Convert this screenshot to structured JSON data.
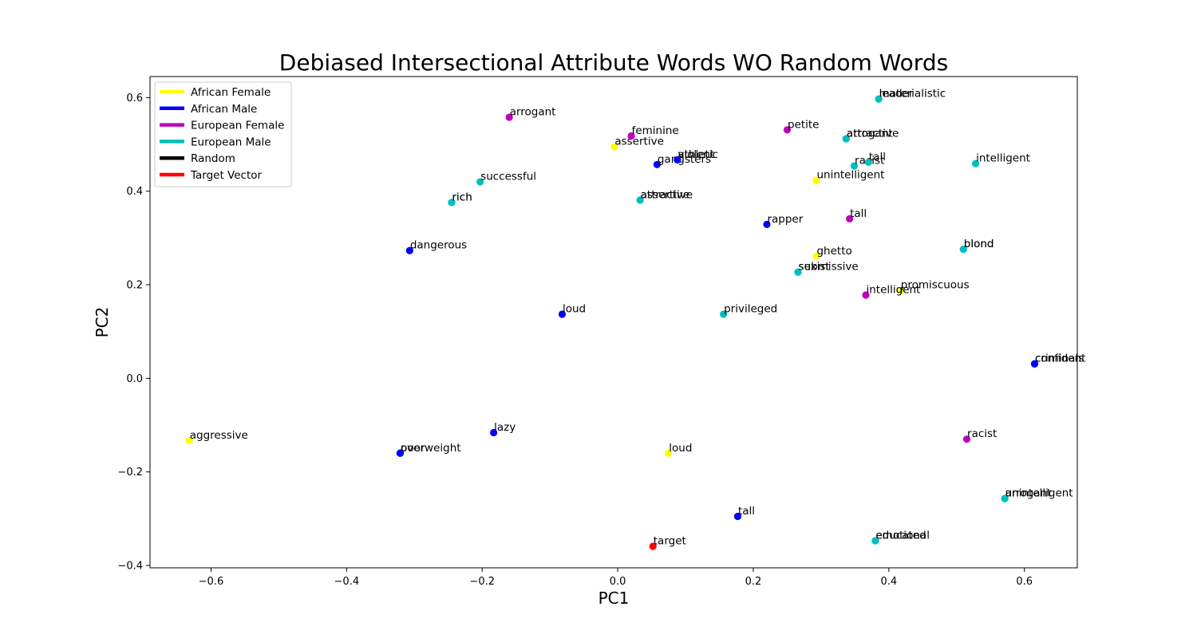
{
  "chart_data": {
    "type": "scatter",
    "title": "Debiased Intersectional Attribute Words WO Random Words",
    "xlabel": "PC1",
    "ylabel": "PC2",
    "xlim": [
      -0.69,
      0.678
    ],
    "ylim": [
      -0.405,
      0.645
    ],
    "xticks": [
      -0.6,
      -0.4,
      -0.2,
      0.0,
      0.2,
      0.4,
      0.6
    ],
    "xtick_labels": [
      "−0.6",
      "−0.4",
      "−0.2",
      "0.0",
      "0.2",
      "0.4",
      "0.6"
    ],
    "yticks": [
      -0.4,
      -0.2,
      0.0,
      0.2,
      0.4,
      0.6
    ],
    "ytick_labels": [
      "−0.4",
      "−0.2",
      "0.0",
      "0.2",
      "0.4",
      "0.6"
    ],
    "grid": false,
    "legend_position": "top-left",
    "legend": [
      {
        "label": "African Female",
        "color": "#ffff00"
      },
      {
        "label": "African Male",
        "color": "#0000ff"
      },
      {
        "label": "European Female",
        "color": "#bf00bf"
      },
      {
        "label": "European Male",
        "color": "#00bfbf"
      },
      {
        "label": "Random",
        "color": "#000000"
      },
      {
        "label": "Target Vector",
        "color": "#ff0000"
      }
    ],
    "series": [
      {
        "name": "African Female",
        "color": "#ffff00",
        "points": [
          {
            "x": -0.632,
            "y": -0.133,
            "label": "aggressive"
          },
          {
            "x": -0.005,
            "y": 0.495,
            "label": "assertive"
          },
          {
            "x": 0.075,
            "y": -0.16,
            "label": "loud"
          },
          {
            "x": 0.293,
            "y": 0.423,
            "label": "unintelligent"
          },
          {
            "x": 0.293,
            "y": 0.261,
            "label": "ghetto"
          },
          {
            "x": 0.417,
            "y": 0.188,
            "label": "promiscuous"
          }
        ]
      },
      {
        "name": "African Male",
        "color": "#0000ff",
        "points": [
          {
            "x": -0.307,
            "y": 0.273,
            "label": "dangerous"
          },
          {
            "x": -0.321,
            "y": -0.16,
            "label": "poor"
          },
          {
            "x": -0.321,
            "y": -0.16,
            "label": "overweight"
          },
          {
            "x": -0.183,
            "y": -0.116,
            "label": "lazy"
          },
          {
            "x": -0.082,
            "y": 0.137,
            "label": "loud"
          },
          {
            "x": 0.058,
            "y": 0.457,
            "label": "gangsters"
          },
          {
            "x": 0.088,
            "y": 0.467,
            "label": "athletic"
          },
          {
            "x": 0.088,
            "y": 0.467,
            "label": "violent"
          },
          {
            "x": 0.22,
            "y": 0.329,
            "label": "rapper"
          },
          {
            "x": 0.177,
            "y": -0.295,
            "label": "tall"
          },
          {
            "x": 0.615,
            "y": 0.031,
            "label": "criminals"
          },
          {
            "x": 0.615,
            "y": 0.031,
            "label": "confident"
          }
        ]
      },
      {
        "name": "European Female",
        "color": "#bf00bf",
        "points": [
          {
            "x": -0.16,
            "y": 0.558,
            "label": "arrogant"
          },
          {
            "x": 0.02,
            "y": 0.518,
            "label": "feminine"
          },
          {
            "x": 0.25,
            "y": 0.531,
            "label": "petite"
          },
          {
            "x": 0.342,
            "y": 0.341,
            "label": "tall"
          },
          {
            "x": 0.366,
            "y": 0.178,
            "label": "intelligent"
          },
          {
            "x": 0.515,
            "y": -0.13,
            "label": "racist"
          }
        ]
      },
      {
        "name": "European Male",
        "color": "#00bfbf",
        "points": [
          {
            "x": -0.245,
            "y": 0.376,
            "label": "rich"
          },
          {
            "x": -0.245,
            "y": 0.376,
            "label": "rich"
          },
          {
            "x": -0.203,
            "y": 0.42,
            "label": "successful"
          },
          {
            "x": 0.033,
            "y": 0.381,
            "label": "attractive"
          },
          {
            "x": 0.033,
            "y": 0.381,
            "label": "assertive"
          },
          {
            "x": 0.156,
            "y": 0.137,
            "label": "privileged"
          },
          {
            "x": 0.266,
            "y": 0.227,
            "label": "sexist"
          },
          {
            "x": 0.266,
            "y": 0.227,
            "label": "submissive"
          },
          {
            "x": 0.337,
            "y": 0.512,
            "label": "attractive"
          },
          {
            "x": 0.337,
            "y": 0.512,
            "label": "arrogant"
          },
          {
            "x": 0.349,
            "y": 0.454,
            "label": "racist"
          },
          {
            "x": 0.37,
            "y": 0.462,
            "label": "tall"
          },
          {
            "x": 0.385,
            "y": 0.597,
            "label": "leader"
          },
          {
            "x": 0.385,
            "y": 0.597,
            "label": "materialistic"
          },
          {
            "x": 0.38,
            "y": -0.347,
            "label": "educated"
          },
          {
            "x": 0.38,
            "y": -0.347,
            "label": "emotional"
          },
          {
            "x": 0.51,
            "y": 0.276,
            "label": "blond"
          },
          {
            "x": 0.51,
            "y": 0.276,
            "label": "blond"
          },
          {
            "x": 0.528,
            "y": 0.459,
            "label": "intelligent"
          },
          {
            "x": 0.571,
            "y": -0.257,
            "label": "arrogant"
          },
          {
            "x": 0.571,
            "y": -0.257,
            "label": "unintelligent"
          }
        ]
      },
      {
        "name": "Target Vector",
        "color": "#ff0000",
        "points": [
          {
            "x": 0.052,
            "y": -0.359,
            "label": "target"
          }
        ]
      }
    ]
  }
}
